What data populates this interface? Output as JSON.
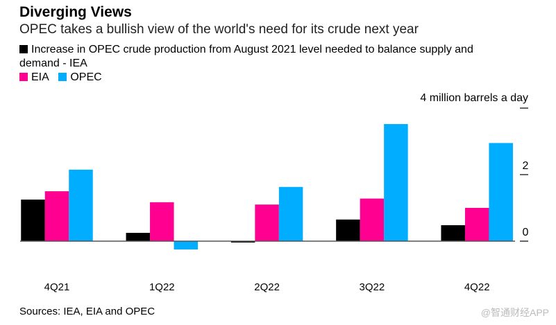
{
  "title": "Diverging Views",
  "subtitle": "OPEC takes a bullish view of the world's need for its crude next year",
  "source": "Sources: IEA, EIA and OPEC",
  "watermark": "@智通财经APP",
  "chart_data": {
    "type": "bar",
    "categories": [
      "4Q21",
      "1Q22",
      "2Q22",
      "3Q22",
      "4Q22"
    ],
    "series": [
      {
        "name": "Increase in OPEC crude production from August 2021 level needed to balance supply and demand - IEA",
        "color": "#000000",
        "values": [
          1.25,
          0.25,
          -0.04,
          0.65,
          0.48
        ]
      },
      {
        "name": "EIA",
        "color": "#ff0090",
        "values": [
          1.5,
          1.17,
          1.1,
          1.28,
          1.0
        ]
      },
      {
        "name": "OPEC",
        "color": "#00adff",
        "values": [
          2.15,
          -0.25,
          1.63,
          3.52,
          2.95
        ]
      }
    ],
    "legend_line1": "Increase in OPEC crude production from August 2021 level needed to balance supply and",
    "legend_line2": "demand - IEA",
    "ylabel": "4 million barrels a day",
    "yticks": [
      {
        "v": 0,
        "label": "0"
      },
      {
        "v": 2,
        "label": "2"
      },
      {
        "v": 4,
        "label": ""
      }
    ],
    "ylim": [
      -1,
      4
    ],
    "grid": false,
    "legend_placement": "top-left"
  }
}
